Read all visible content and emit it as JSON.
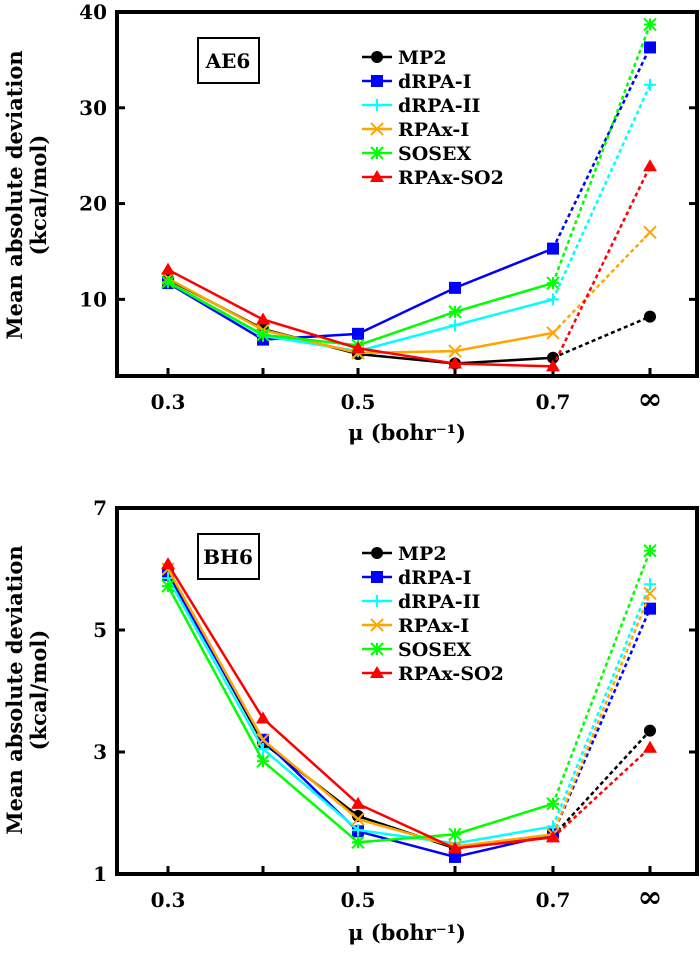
{
  "chart_data": [
    {
      "type": "line",
      "panel_label": "AE6",
      "ylabel_line1": "Mean absolute deviation",
      "ylabel_line2": "(kcal/mol)",
      "xlabel": "μ (bohr⁻¹)",
      "categories": [
        "0.3",
        "0.4",
        "0.5",
        "0.6",
        "0.7",
        "∞"
      ],
      "xtick_labels": [
        "0.3",
        "0.5",
        "0.7",
        "∞"
      ],
      "ylim": [
        2,
        40
      ],
      "yticks": [
        10,
        20,
        30,
        40
      ],
      "legend": "top-right",
      "grid": false,
      "series": [
        {
          "name": "MP2",
          "color": "#000000",
          "marker": "circle",
          "values": [
            12.1,
            6.9,
            4.3,
            3.3,
            3.9,
            8.2
          ]
        },
        {
          "name": "dRPA-I",
          "color": "#0000ff",
          "marker": "square",
          "values": [
            11.7,
            5.8,
            6.4,
            11.2,
            15.3,
            36.3
          ]
        },
        {
          "name": "dRPA-II",
          "color": "#00ffff",
          "marker": "plus",
          "values": [
            11.8,
            6.2,
            4.6,
            7.3,
            10.0,
            32.4
          ]
        },
        {
          "name": "RPAx-I",
          "color": "#ffa500",
          "marker": "cross",
          "values": [
            12.2,
            6.8,
            4.4,
            4.6,
            6.5,
            17.0
          ]
        },
        {
          "name": "SOSEX",
          "color": "#00ff00",
          "marker": "asterisk",
          "values": [
            11.8,
            6.3,
            5.2,
            8.7,
            11.7,
            38.7
          ]
        },
        {
          "name": "RPAx-SO2",
          "color": "#ff0000",
          "marker": "triangle",
          "values": [
            13.1,
            7.9,
            4.9,
            3.3,
            3.0,
            23.9
          ]
        }
      ]
    },
    {
      "type": "line",
      "panel_label": "BH6",
      "ylabel_line1": "Mean absolute deviation",
      "ylabel_line2": "(kcal/mol)",
      "xlabel": "μ (bohr⁻¹)",
      "categories": [
        "0.3",
        "0.4",
        "0.5",
        "0.6",
        "0.7",
        "∞"
      ],
      "xtick_labels": [
        "0.3",
        "0.5",
        "0.7",
        "∞"
      ],
      "ylim": [
        1,
        7
      ],
      "yticks": [
        1,
        3,
        5,
        7
      ],
      "legend": "top-right",
      "grid": false,
      "series": [
        {
          "name": "MP2",
          "color": "#000000",
          "marker": "circle",
          "values": [
            5.95,
            3.15,
            1.95,
            1.42,
            1.62,
            3.35
          ]
        },
        {
          "name": "dRPA-I",
          "color": "#0000ff",
          "marker": "square",
          "values": [
            5.9,
            3.2,
            1.7,
            1.28,
            1.65,
            5.35
          ]
        },
        {
          "name": "dRPA-II",
          "color": "#00ffff",
          "marker": "plus",
          "values": [
            5.85,
            3.05,
            1.72,
            1.5,
            1.78,
            5.75
          ]
        },
        {
          "name": "RPAx-I",
          "color": "#ffa500",
          "marker": "cross",
          "values": [
            6.0,
            3.2,
            1.9,
            1.45,
            1.65,
            5.6
          ]
        },
        {
          "name": "SOSEX",
          "color": "#00ff00",
          "marker": "asterisk",
          "values": [
            5.72,
            2.85,
            1.52,
            1.65,
            2.15,
            6.3
          ]
        },
        {
          "name": "RPAx-SO2",
          "color": "#ff0000",
          "marker": "triangle",
          "values": [
            6.08,
            3.55,
            2.15,
            1.42,
            1.6,
            3.07
          ]
        }
      ]
    }
  ]
}
